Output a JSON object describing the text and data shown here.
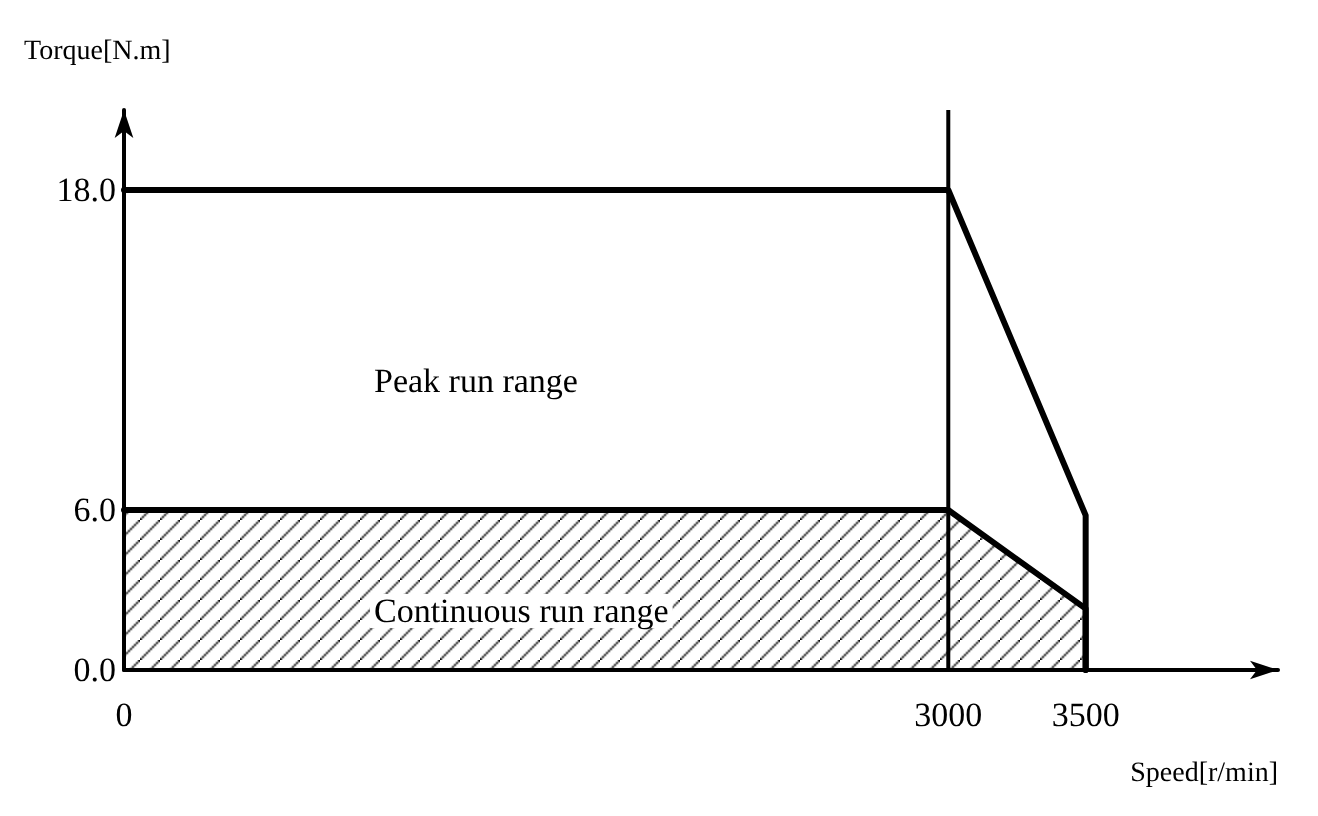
{
  "chart_data": {
    "type": "line",
    "xlabel": "Speed[r/min]",
    "ylabel": "Torque[N.m]",
    "series": [
      {
        "color": "#000000",
        "x": [
          0,
          3000,
          3500,
          3500
        ],
        "values": [
          18,
          18,
          5.8,
          0
        ]
      },
      {
        "type": "area",
        "color": "#000000",
        "x": [
          0,
          3000,
          3500,
          3500
        ],
        "values": [
          6,
          6,
          2.3,
          0
        ]
      }
    ],
    "xlim": [
      0,
      4200
    ],
    "xticks": [
      0,
      3000,
      3500
    ],
    "ylim": [
      0,
      21
    ],
    "yticks": [
      {
        "value": 0,
        "label": "0.0"
      },
      {
        "value": 6,
        "label": "6.0"
      },
      {
        "value": 18,
        "label": "18.0"
      }
    ],
    "ref_lines": [
      {
        "axis": "x",
        "value": 3000,
        "label": null,
        "color": "#000000"
      }
    ],
    "annotations": [
      "Peak run range",
      "Continuous run range"
    ],
    "grid": false,
    "marker": "none",
    "line_style": "solid"
  }
}
